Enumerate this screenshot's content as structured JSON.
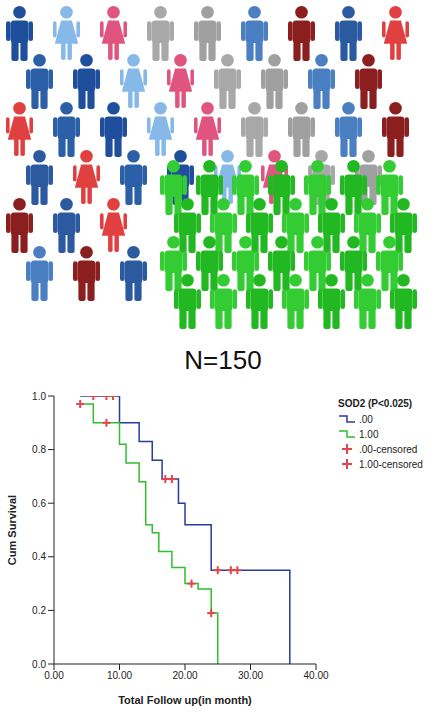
{
  "caption": "N=150",
  "chart_data": {
    "type": "line",
    "xlabel": "Total Follow up(in month)",
    "ylabel": "Cum Survival",
    "legend_title": "SOD2 (P<0.025)",
    "legend": "right",
    "xlim": [
      0,
      40
    ],
    "xticks": [
      {
        "value": 0,
        "label": "0.00"
      },
      {
        "value": 10,
        "label": "10.00"
      },
      {
        "value": 20,
        "label": "20.00"
      },
      {
        "value": 30,
        "label": "30.00"
      },
      {
        "value": 40,
        "label": "40.00"
      }
    ],
    "ylim": [
      0,
      1
    ],
    "yticks": [
      {
        "value": 0,
        "label": "0.0"
      },
      0.2,
      0.4,
      0.6,
      0.8,
      {
        "value": 1,
        "label": "1.0"
      }
    ],
    "grid": false,
    "series": [
      {
        "name": ".00",
        "type": "line",
        "line_style": "step",
        "color": "#2b3b9c",
        "x": [
          4,
          10,
          13,
          15,
          16.5,
          19,
          20,
          24,
          36
        ],
        "values": [
          1.0,
          0.9,
          0.83,
          0.76,
          0.69,
          0.6,
          0.52,
          0.35,
          0
        ]
      },
      {
        "name": "1.00",
        "type": "line",
        "line_style": "step",
        "color": "#2fbf2f",
        "x": [
          4,
          6,
          10,
          11,
          13,
          14,
          15,
          16,
          18,
          20,
          22,
          24,
          25
        ],
        "values": [
          0.97,
          0.9,
          0.82,
          0.75,
          0.68,
          0.52,
          0.49,
          0.42,
          0.36,
          0.3,
          0.28,
          0.19,
          0
        ]
      },
      {
        "name": ".00-censored",
        "type": "scatter",
        "marker": "plus",
        "color": "#e0474c",
        "x": [
          6,
          8,
          9,
          17,
          18,
          25,
          27,
          28
        ],
        "values": [
          1,
          1,
          1,
          0.69,
          0.69,
          0.35,
          0.35,
          0.35
        ]
      },
      {
        "name": "1.00-censored",
        "type": "scatter",
        "marker": "plus",
        "color": "#e0474c",
        "x": [
          4,
          8,
          21,
          24
        ],
        "values": [
          0.97,
          0.9,
          0.3,
          0.19
        ]
      }
    ]
  }
}
